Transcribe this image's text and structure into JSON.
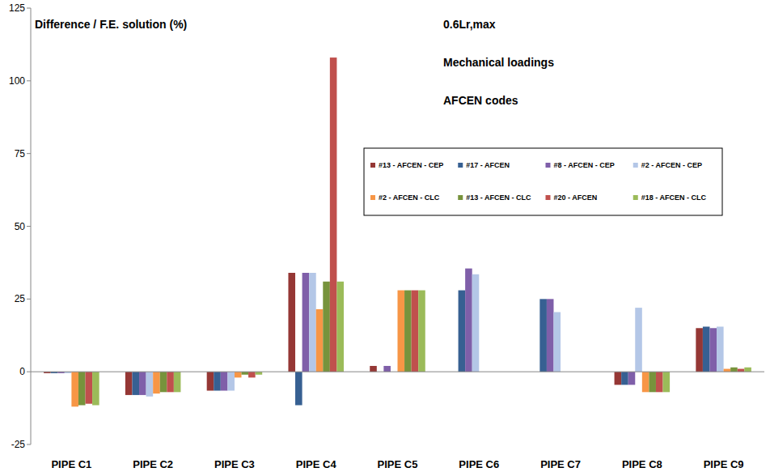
{
  "chart_data": {
    "type": "bar",
    "y_label": "Difference / F.E. solution (%)",
    "annotations": [
      "0.6Lr,max",
      "Mechanical loadings",
      "AFCEN codes"
    ],
    "categories": [
      "PIPE C1",
      "PIPE C2",
      "PIPE C3",
      "PIPE C4",
      "PIPE C5",
      "PIPE C6",
      "PIPE C7",
      "PIPE C8",
      "PIPE C9"
    ],
    "series": [
      {
        "name": "#13 - AFCEN - CEP",
        "color": "#953735",
        "values": [
          -0.5,
          -8,
          -6.5,
          34,
          2,
          null,
          null,
          -4.5,
          15
        ]
      },
      {
        "name": "#17 - AFCEN",
        "color": "#376092",
        "values": [
          -0.5,
          -8,
          -6.5,
          -11.5,
          null,
          28,
          25,
          -4.5,
          15.5
        ]
      },
      {
        "name": "#8 - AFCEN - CEP",
        "color": "#7f5fa9",
        "values": [
          -0.5,
          -8,
          -6.5,
          34,
          2,
          35.5,
          25,
          -4.5,
          15
        ]
      },
      {
        "name": "#2 - AFCEN - CEP",
        "color": "#b4c7e7",
        "values": [
          -0.5,
          -8.5,
          -6.5,
          34,
          null,
          33.5,
          20.5,
          22,
          15.5
        ]
      },
      {
        "name": "#2 - AFCEN - CLC",
        "color": "#f79646",
        "values": [
          -12,
          -7.5,
          -2,
          21.5,
          28,
          null,
          null,
          -7,
          1
        ]
      },
      {
        "name": "#13 - AFCEN - CLC",
        "color": "#77933c",
        "values": [
          -11.5,
          -7,
          -1,
          31,
          28,
          null,
          null,
          -7,
          1.5
        ]
      },
      {
        "name": "#20 - AFCEN",
        "color": "#c0504d",
        "values": [
          -11,
          -7,
          -2,
          108,
          28,
          null,
          null,
          -7,
          1
        ]
      },
      {
        "name": "#18 - AFCEN - CLC",
        "color": "#9bbb59",
        "values": [
          -11.5,
          -7,
          -1,
          31,
          28,
          null,
          null,
          -7,
          1.5
        ]
      }
    ],
    "ylim": [
      -25,
      125
    ],
    "yticks": [
      -25,
      0,
      25,
      50,
      75,
      100,
      125
    ],
    "grid": false,
    "legend": "right"
  }
}
